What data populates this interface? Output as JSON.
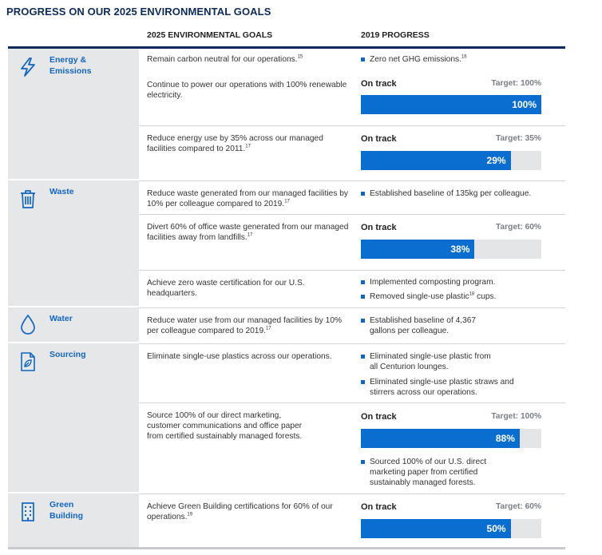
{
  "title": "PROGRESS ON OUR 2025 ENVIRONMENTAL GOALS",
  "columns": {
    "goals": "2025 ENVIRONMENTAL GOALS",
    "progress": "2019 PROGRESS"
  },
  "colors": {
    "navy": "#0d2a5c",
    "accent": "#1266c4",
    "bar_fill": "#0a6ed1",
    "bar_track": "#e4e5e7",
    "band": "#e6e7e9"
  },
  "categories": [
    {
      "label": "Energy &\nEmissions",
      "icon": "lightning-bolt-icon"
    },
    {
      "label": "Waste",
      "icon": "trash-bin-icon"
    },
    {
      "label": "Water",
      "icon": "water-drop-icon"
    },
    {
      "label": "Sourcing",
      "icon": "leaf-document-icon"
    },
    {
      "label": "Green\nBuilding",
      "icon": "building-icon"
    }
  ],
  "rows": [
    {
      "goal": "Remain carbon neutral for our operations.",
      "goal_note": "15",
      "bullets": [
        {
          "text": "Zero net GHG emissions.",
          "note": "16"
        }
      ]
    },
    {
      "goal": "Continue to power our operations with 100% renewable electricity.",
      "status": "On track",
      "target": "Target: 100%",
      "value": "100%",
      "progress": 1.0
    },
    {
      "goal": "Reduce energy use by 35% across our managed facilities compared to 2011.",
      "goal_note": "17",
      "status": "On track",
      "target": "Target: 35%",
      "value": "29%",
      "progress": 0.83
    },
    {
      "goal": "Reduce waste generated from our managed facilities by 10% per colleague compared to 2019.",
      "goal_note": "17",
      "bullets": [
        {
          "text": "Established baseline of 135kg per colleague."
        }
      ]
    },
    {
      "goal": "Divert 60% of office waste generated from our managed facilities away from landfills.",
      "goal_note": "17",
      "status": "On track",
      "target": "Target: 60%",
      "value": "38%",
      "progress": 0.63
    },
    {
      "goal": "Achieve zero waste certification for our U.S. headquarters.",
      "bullets": [
        {
          "text": "Implemented composting program."
        },
        {
          "text_before": "Removed single-use plastic",
          "note": "18",
          "text_after": " cups."
        }
      ]
    },
    {
      "goal": "Reduce water use from our managed facilities by 10% per colleague compared to 2019.",
      "goal_note": "17",
      "bullets": [
        {
          "text": "Established baseline of 4,367 gallons per colleague."
        }
      ]
    },
    {
      "goal": "Eliminate single-use plastics across our operations.",
      "bullets": [
        {
          "text": "Eliminated single-use plastic from all Centurion lounges."
        },
        {
          "text": "Eliminated single-use plastic straws and stirrers across our operations."
        }
      ]
    },
    {
      "goal": "Source 100% of our direct marketing, customer communications and office paper from certified sustainably managed forests.",
      "status": "On track",
      "target": "Target: 100%",
      "value": "88%",
      "progress": 0.88,
      "bullets": [
        {
          "text": "Sourced 100% of our U.S. direct marketing paper from certified sustainably managed forests."
        }
      ]
    },
    {
      "goal": "Achieve Green Building certifications for 60% of our operations.",
      "goal_note": "19",
      "status": "On track",
      "target": "Target: 60%",
      "value": "50%",
      "progress": 0.83
    }
  ]
}
